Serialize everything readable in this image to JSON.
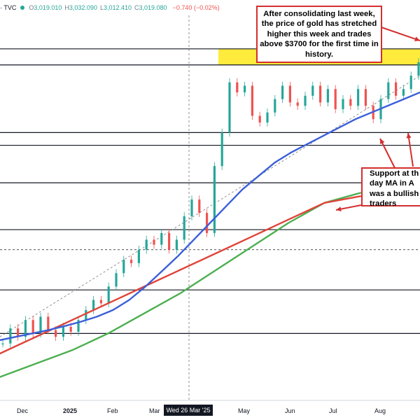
{
  "header": {
    "symbol": "· TVC",
    "open_label": "O",
    "open": "3,019.010",
    "high_label": "H",
    "high": "3,032.090",
    "low_label": "L",
    "low": "3,012.410",
    "close_label": "C",
    "close": "3,019.080",
    "change": "−0.740 (−0.02%)"
  },
  "annotations": {
    "top_note": "After consolidating last week, the price of gold has stretched higher this week and trades above $3700 for the first time in history.",
    "support_note_line1": "Support at th",
    "support_note_line2": "day MA in A",
    "support_note_line3": "was a bullish",
    "support_note_line4": "traders"
  },
  "crosshair_date": "Wed 26 Mar '25",
  "colors": {
    "ma_blue": "#3b5fd9",
    "ma_red": "#e0443a",
    "ma_green": "#4caf50",
    "highlight": "#ffeb3b",
    "annotation_border": "#d32f2f",
    "candle_up": "#26a69a",
    "candle_down": "#ef5350"
  },
  "chart_data": {
    "type": "line",
    "x_ticks": [
      "Dec",
      "2025",
      "Feb",
      "Mar",
      "May",
      "Jun",
      "Jul",
      "Aug"
    ],
    "series": [
      {
        "key": "price",
        "values": [
          2620,
          2665,
          2640,
          2690,
          2650,
          2700,
          2660,
          2640,
          2670,
          2655,
          2690,
          2720,
          2750,
          2740,
          2790,
          2830,
          2870,
          2860,
          2900,
          2930,
          2915,
          2950,
          2900,
          2930,
          3000,
          3050,
          3010,
          2950,
          3150,
          3250,
          3400,
          3370,
          3390,
          3300,
          3280,
          3310,
          3350,
          3390,
          3340,
          3330,
          3360,
          3390,
          3340,
          3380,
          3320,
          3350,
          3330,
          3380,
          3330,
          3290,
          3350,
          3400,
          3360,
          3380,
          3420,
          3460
        ]
      },
      {
        "key": "ma_blue",
        "values": [
          2630,
          2640,
          2650,
          2660,
          2672,
          2685,
          2700,
          2720,
          2750,
          2790,
          2835,
          2880,
          2930,
          2980,
          3030,
          3080,
          3120,
          3160,
          3190,
          3215,
          3240,
          3265,
          3290,
          3310,
          3330,
          3350,
          3370
        ]
      },
      {
        "key": "ma_red",
        "values": [
          2590,
          2640,
          2690,
          2740,
          2790,
          2840,
          2890,
          2940,
          2990,
          3040,
          3060
        ]
      },
      {
        "key": "ma_green",
        "values": [
          2520,
          2560,
          2600,
          2650,
          2710,
          2770,
          2840,
          2910,
          2980,
          3040,
          3070
        ]
      }
    ],
    "horizontal_levels": [
      3500,
      3452,
      3250,
      3212,
      3100,
      2960,
      2900,
      2780,
      2650
    ]
  }
}
